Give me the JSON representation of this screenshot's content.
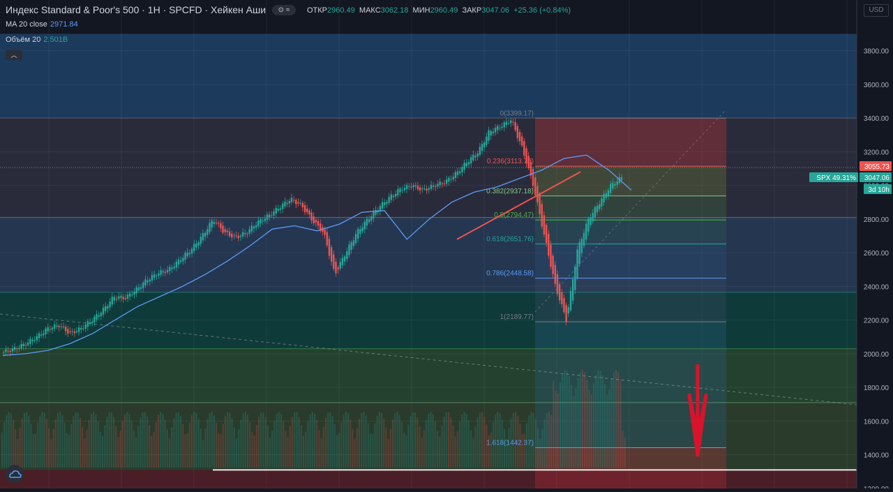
{
  "header": {
    "title": "Индекс Standard & Poor's 500 · 1H · SPCFD · Хейкен Аши",
    "badge": "⊙ ≈",
    "ohlc": [
      {
        "label": "ОТКР",
        "value": "2960.49"
      },
      {
        "label": "МАКС",
        "value": "3062.18"
      },
      {
        "label": "МИН",
        "value": "2960.49"
      },
      {
        "label": "ЗАКР",
        "value": "3047.06"
      }
    ],
    "change": "+25.36 (+0.84%)"
  },
  "indicators": {
    "ma_label": "MA 20 close",
    "ma_value": "2971.84",
    "vol_label": "Объём 20",
    "vol_value": "2.501B",
    "collapse_glyph": "︿"
  },
  "scale_button": "USD",
  "price_badges": {
    "last": "3055.73",
    "close": "3047.06",
    "countdown": "3d 10h",
    "symbol_pct": "SPX 49.31%"
  },
  "colors": {
    "up": "#26a69a",
    "down": "#ef5350",
    "ma": "#5b9cf6",
    "accent_arrow": "#d9132b"
  },
  "chart_data": {
    "type": "candlestick",
    "candle_style": "Heikin Ashi",
    "symbol": "SPX",
    "timeframe": "1H",
    "ylim": [
      1200,
      3900
    ],
    "y_ticks": [
      1200,
      1400,
      1600,
      1800,
      2000,
      2200,
      2400,
      2600,
      2800,
      3000,
      3200,
      3400,
      3600,
      3800
    ],
    "y_tick_labels": [
      "1200.00",
      "1400.00",
      "1600.00",
      "1800.00",
      "2000.00",
      "2200.00",
      "2400.00",
      "2600.00",
      "2800.00",
      "3000.00",
      "3200.00",
      "3400.00",
      "3600.00",
      "3800.00"
    ],
    "grid": true,
    "series": [
      {
        "name": "Хейкен Аши",
        "type": "candles",
        "approx_close": [
          2010,
          2030,
          2060,
          2100,
          2150,
          2170,
          2120,
          2150,
          2200,
          2260,
          2340,
          2330,
          2380,
          2440,
          2480,
          2500,
          2560,
          2620,
          2700,
          2800,
          2720,
          2690,
          2720,
          2780,
          2820,
          2870,
          2920,
          2880,
          2790,
          2720,
          2470,
          2600,
          2720,
          2800,
          2870,
          2930,
          2980,
          3000,
          2970,
          3000,
          3020,
          3070,
          3140,
          3200,
          3320,
          3350,
          3390,
          3220,
          3000,
          2700,
          2400,
          2200,
          2620,
          2800,
          2900,
          3000,
          3047.06
        ]
      },
      {
        "name": "MA 20 close",
        "type": "line",
        "approx_values": [
          1990,
          2000,
          2020,
          2060,
          2120,
          2200,
          2280,
          2340,
          2400,
          2470,
          2550,
          2640,
          2740,
          2760,
          2730,
          2770,
          2840,
          2850,
          2680,
          2800,
          2900,
          2960,
          2990,
          3040,
          3090,
          3160,
          3180,
          3090,
          2971.84
        ]
      },
      {
        "name": "Объём 20",
        "type": "volume"
      }
    ],
    "fibonacci": [
      {
        "level": "0",
        "price": 3399.17
      },
      {
        "level": "0.236",
        "price": 3113.75
      },
      {
        "level": "0.382",
        "price": 2937.18
      },
      {
        "level": "0.5",
        "price": 2794.47
      },
      {
        "level": "0.618",
        "price": 2651.76
      },
      {
        "level": "0.786",
        "price": 2448.58
      },
      {
        "level": "1",
        "price": 2189.77
      },
      {
        "level": "1.618",
        "price": 1442.37
      }
    ],
    "fib_labels": [
      "0(3399.17)",
      "0.236(3113.75)",
      "0.382(2937.18)",
      "0.5(2794.47)",
      "0.618(2651.76)",
      "0.786(2448.58)",
      "1(2189.77)",
      "1.618(1442.37)"
    ],
    "horizontal_levels": [
      3400,
      2810,
      2365,
      2030,
      1710,
      1310
    ],
    "zones": [
      {
        "from": 3400,
        "to": 3900,
        "color": "#1c3a5c"
      },
      {
        "from": 2810,
        "to": 3400,
        "color": "#2a2b3a"
      },
      {
        "from": 2365,
        "to": 2810,
        "color": "#243650"
      },
      {
        "from": 2030,
        "to": 2365,
        "color": "#0f3a3a"
      },
      {
        "from": 1710,
        "to": 2030,
        "color": "#24402f"
      },
      {
        "from": 1310,
        "to": 1710,
        "color": "#2a3b2c"
      },
      {
        "from": 1200,
        "to": 1310,
        "color": "#4a1e26"
      }
    ],
    "annotation": "down arrow"
  }
}
